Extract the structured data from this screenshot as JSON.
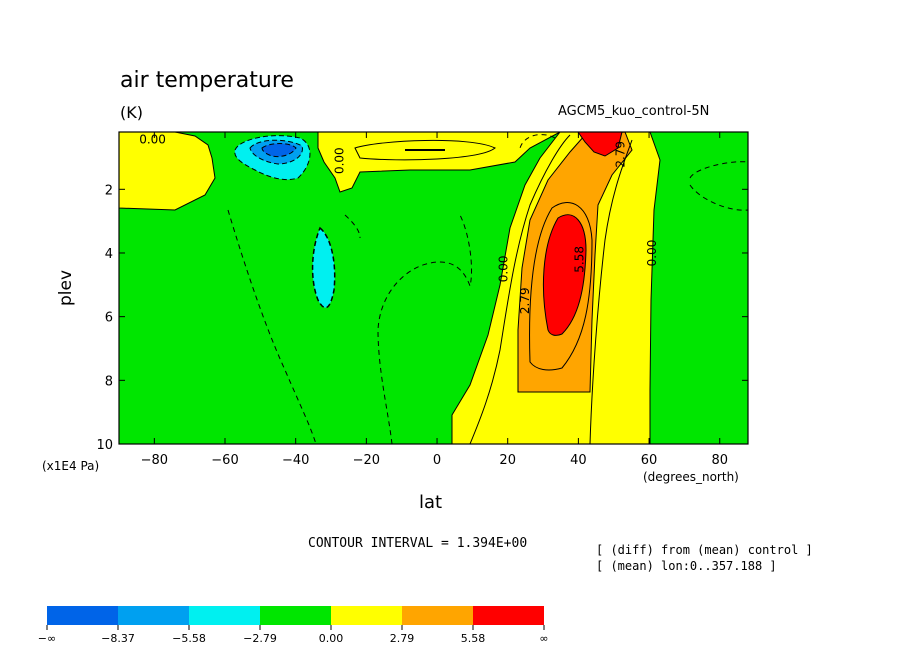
{
  "chart_data": {
    "type": "heatmap",
    "title": "air temperature",
    "units": "(K)",
    "model_label": "AGCM5_kuo_control-5N",
    "xlabel": "lat",
    "x_units": "(degrees_north)",
    "ylabel": "plev",
    "y_units": "(x1E4 Pa)",
    "xlim": [
      -90,
      88
    ],
    "ylim": [
      10,
      0.2
    ],
    "x_ticks": [
      -80,
      -60,
      -40,
      -20,
      0,
      20,
      40,
      60,
      80
    ],
    "x_tick_labels": [
      "−80",
      "−60",
      "−40",
      "−20",
      "0",
      "20",
      "40",
      "60",
      "80"
    ],
    "y_ticks": [
      2,
      4,
      6,
      8,
      10
    ],
    "y_tick_labels": [
      "2",
      "4",
      "6",
      "8",
      "10"
    ],
    "contour_interval_text": "CONTOUR INTERVAL = 1.394E+00",
    "notes": [
      "[ (diff) from (mean) control ]",
      "[ (mean) lon:0..357.188 ]"
    ],
    "contour_labels": [
      {
        "text": "0.00",
        "lat": -80.5,
        "plev": 0.45,
        "rotate": 0
      },
      {
        "text": "0.00",
        "lat": -27.5,
        "plev": 1.1,
        "rotate": -90
      },
      {
        "text": "0.00",
        "lat": 19,
        "plev": 4.5,
        "rotate": -90
      },
      {
        "text": "2.79",
        "lat": 25,
        "plev": 5.5,
        "rotate": -90
      },
      {
        "text": "5.58",
        "lat": 40.5,
        "plev": 4.2,
        "rotate": -90
      },
      {
        "text": "2.79",
        "lat": 52,
        "plev": 0.9,
        "rotate": -90
      },
      {
        "text": "0.00",
        "lat": 61,
        "plev": 4.0,
        "rotate": -90
      }
    ],
    "colorbar": {
      "bins": [
        "#0064e8",
        "#00a0f0",
        "#00f0f0",
        "#00e600",
        "#ffff00",
        "#ffa500",
        "#ff0000"
      ],
      "labels": [
        "−∞",
        "−8.37",
        "−5.58",
        "−2.79",
        "0.00",
        "2.79",
        "5.58",
        "∞"
      ]
    },
    "regions": [
      {
        "name": "background",
        "level": "-2.79 to 0.00",
        "color": "#00e600"
      },
      {
        "name": "southern-tropopause-warm",
        "level": "0.00 to 2.79",
        "color": "#ffff00"
      },
      {
        "name": "northern-warm-band",
        "level": "0.00 to 2.79",
        "color": "#ffff00"
      },
      {
        "name": "northern-warmer-band",
        "level": "2.79 to 5.58",
        "color": "#ffa500"
      },
      {
        "name": "northern-warm-core",
        "level": "> 5.58",
        "color": "#ff0000"
      },
      {
        "name": "southern-upper-cold",
        "level": "< -2.79",
        "color": "#00f0f0"
      },
      {
        "name": "southern-mid-cold",
        "level": "< -2.79",
        "color": "#00f0f0"
      }
    ]
  }
}
